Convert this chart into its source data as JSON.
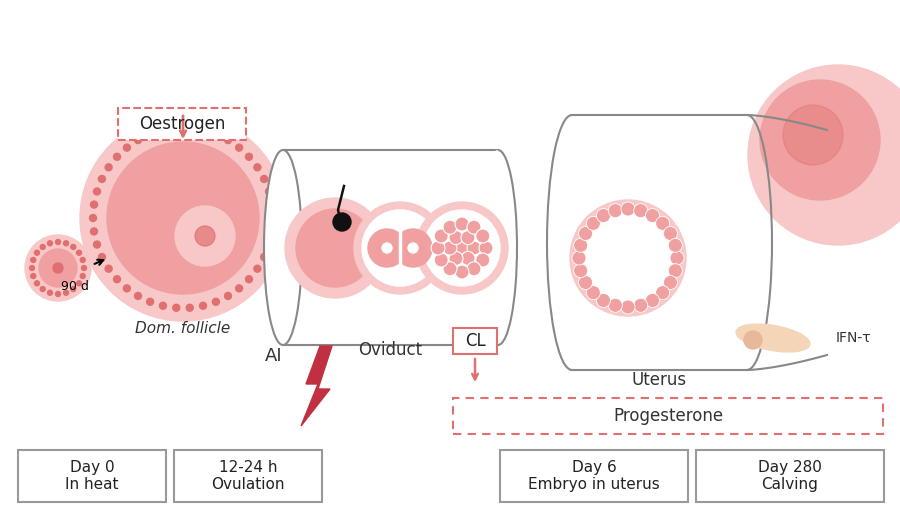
{
  "bg_color": "#ffffff",
  "pink_main": "#e07070",
  "pink_light": "#f0a0a0",
  "pink_pale": "#f8c8c8",
  "pink_very_pale": "#fce8e8",
  "gray_line": "#888888",
  "red_flash": "#c03040",
  "dashed_red": "#e07070",
  "labels": {
    "oestrogen": "Oestrogen",
    "dom_follicle": "Dom. follicle",
    "oviduct": "Oviduct",
    "AI": "AI",
    "CL": "CL",
    "progesterone": "Progesterone",
    "uterus": "Uterus",
    "IFN": "IFN-τ",
    "90d": "90 d",
    "day0": "Day 0\nIn heat",
    "day1224": "12-24 h\nOvulation",
    "day6": "Day 6\nEmbryo in uterus",
    "day280": "Day 280\nCalving"
  },
  "figsize": [
    9.0,
    5.07
  ],
  "dpi": 100
}
